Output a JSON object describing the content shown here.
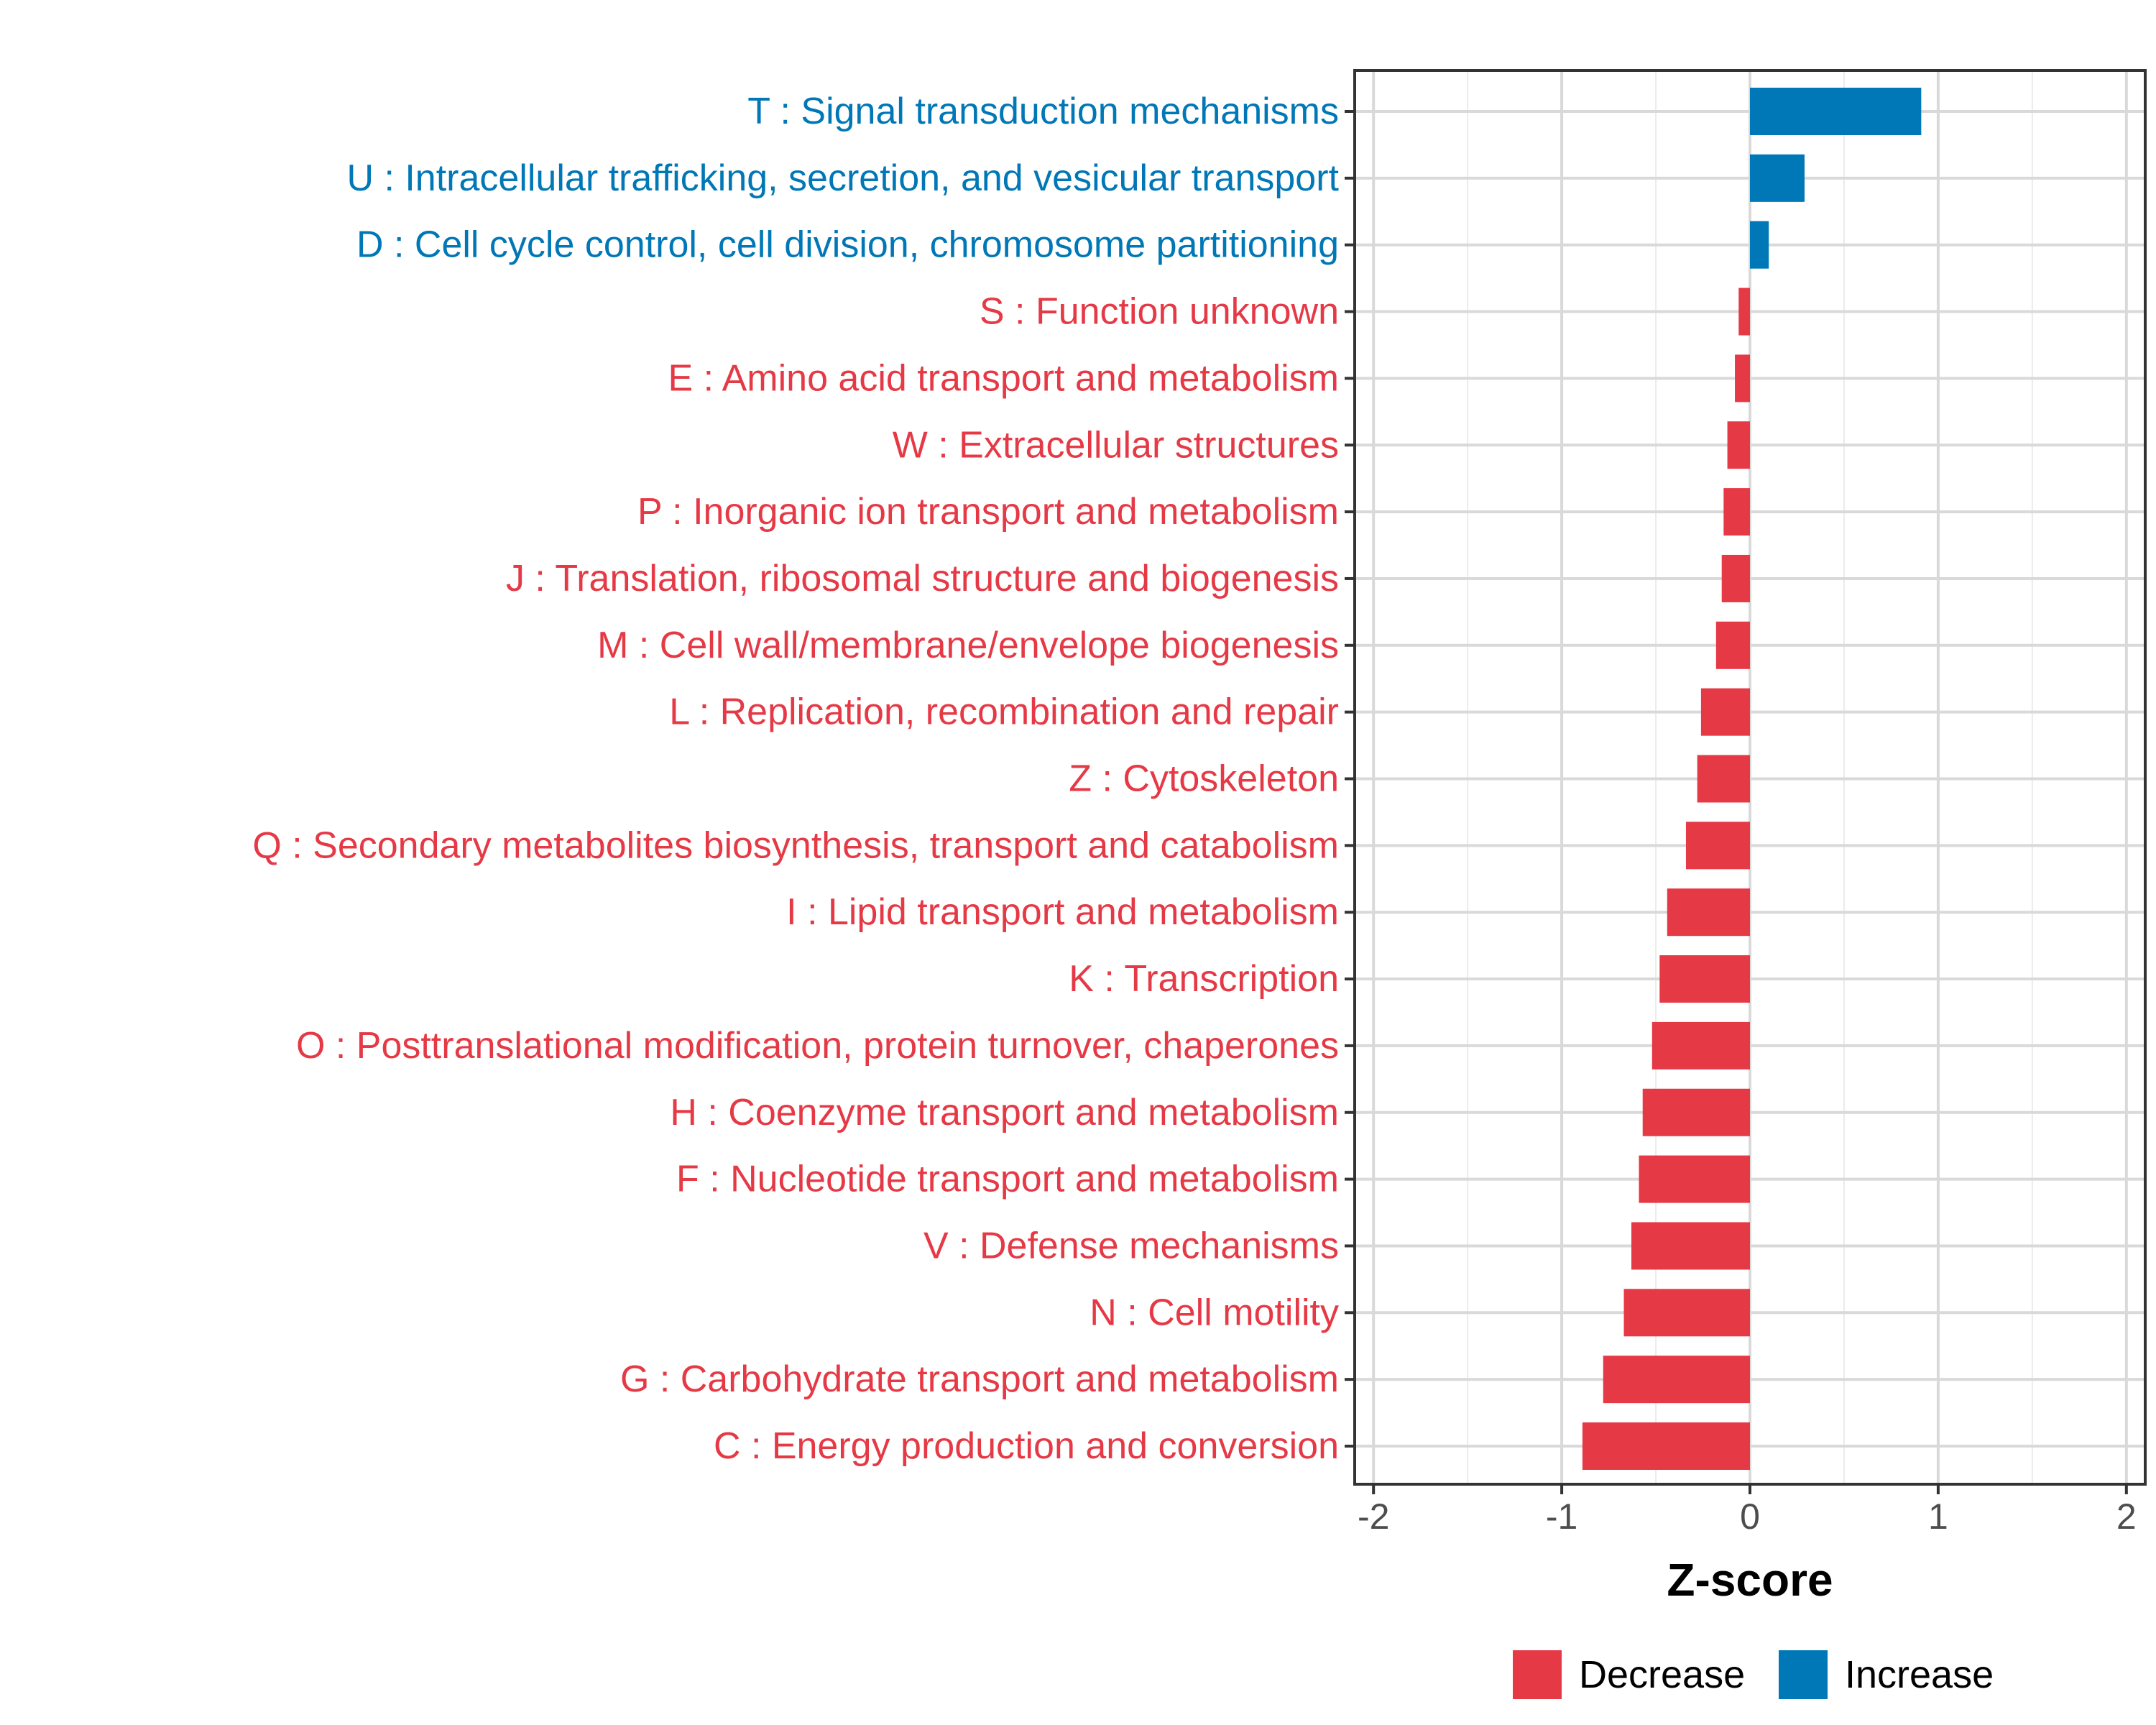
{
  "chart_data": {
    "type": "bar",
    "orientation": "horizontal",
    "categories": [
      "T : Signal transduction mechanisms",
      "U : Intracellular trafficking, secretion, and vesicular transport",
      "D : Cell cycle control, cell division, chromosome partitioning",
      "S : Function unknown",
      "E : Amino acid transport and metabolism",
      "W : Extracellular structures",
      "P : Inorganic ion transport and metabolism",
      "J : Translation, ribosomal structure and biogenesis",
      "M : Cell wall/membrane/envelope biogenesis",
      "L : Replication, recombination and repair",
      "Z : Cytoskeleton",
      "Q : Secondary metabolites biosynthesis, transport and catabolism",
      "I : Lipid transport and metabolism",
      "K : Transcription",
      "O : Posttranslational modification, protein turnover, chaperones",
      "H : Coenzyme transport and metabolism",
      "F : Nucleotide transport and metabolism",
      "V : Defense mechanisms",
      "N : Cell motility",
      "G : Carbohydrate transport and metabolism",
      "C : Energy production and conversion"
    ],
    "values": [
      0.91,
      0.29,
      0.1,
      -0.06,
      -0.08,
      -0.12,
      -0.14,
      -0.15,
      -0.18,
      -0.26,
      -0.28,
      -0.34,
      -0.44,
      -0.48,
      -0.52,
      -0.57,
      -0.59,
      -0.63,
      -0.67,
      -0.78,
      -0.89
    ],
    "groups": [
      "Increase",
      "Increase",
      "Increase",
      "Decrease",
      "Decrease",
      "Decrease",
      "Decrease",
      "Decrease",
      "Decrease",
      "Decrease",
      "Decrease",
      "Decrease",
      "Decrease",
      "Decrease",
      "Decrease",
      "Decrease",
      "Decrease",
      "Decrease",
      "Decrease",
      "Decrease",
      "Decrease"
    ],
    "xlabel": "Z-score",
    "ylabel": "",
    "xlim": [
      -2.1,
      2.1
    ],
    "xticks": [
      -2,
      -1,
      0,
      1,
      2
    ],
    "xtick_labels": [
      "-2",
      "-1",
      "0",
      "1",
      "2"
    ],
    "grid": true,
    "legend": {
      "position": "bottom",
      "entries": [
        {
          "label": "Decrease",
          "color": "#E63946"
        },
        {
          "label": "Increase",
          "color": "#0077B6"
        }
      ]
    },
    "colors": {
      "Decrease": "#E63946",
      "Increase": "#0077B6"
    }
  }
}
